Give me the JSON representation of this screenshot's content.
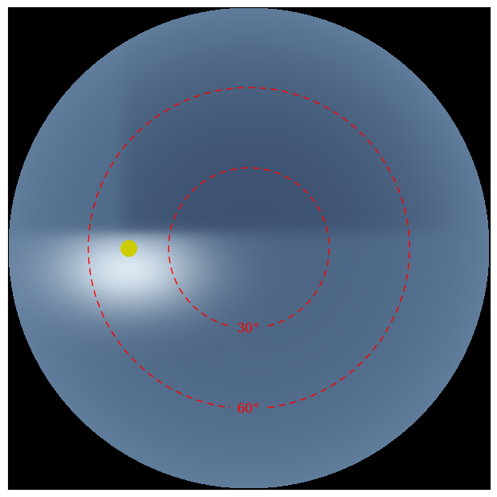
{
  "chart_data": {
    "type": "sky_map",
    "horizon": 90,
    "circles": [
      {
        "zenith": 30,
        "label": "30°"
      },
      {
        "zenith": 60,
        "label": "60°"
      }
    ],
    "sun": {
      "zenith": 45,
      "azimuth": 270,
      "color": "#cccc00"
    },
    "color": "red",
    "line_style": "dashed",
    "tick_labels": false
  }
}
